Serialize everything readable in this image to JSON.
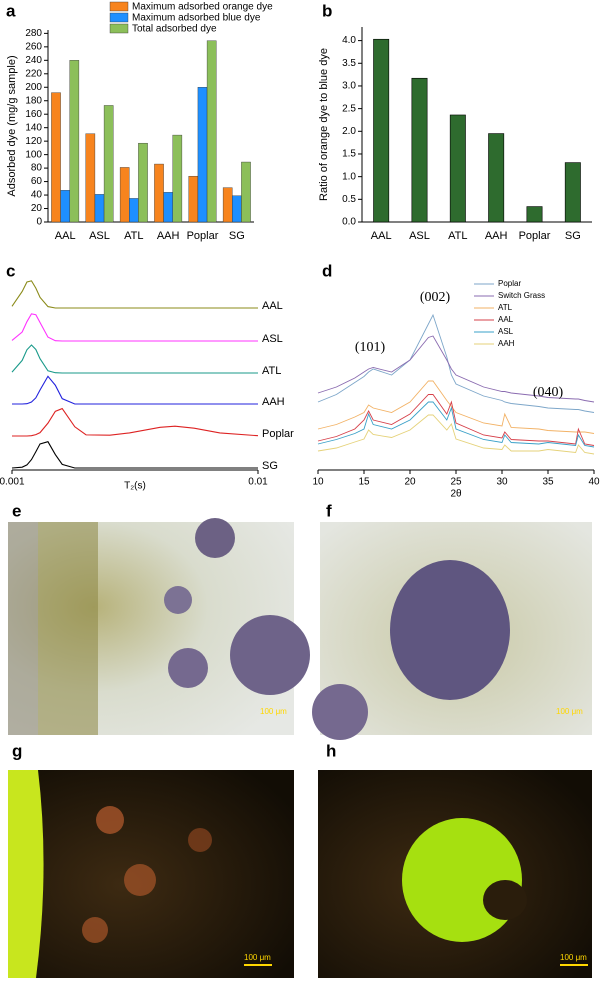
{
  "chart_data": [
    {
      "type": "bar",
      "label": "a",
      "ylabel": "Adsorbed dye (mg/g sample)",
      "categories": [
        "AAL",
        "ASL",
        "ATL",
        "AAH",
        "Poplar",
        "SG"
      ],
      "series": [
        {
          "name": "Maximum adsorbed orange dye",
          "color": "#f7841e",
          "values": [
            192,
            131,
            81,
            86,
            68,
            51
          ]
        },
        {
          "name": "Maximum adsorbed blue dye",
          "color": "#1e8fff",
          "values": [
            47,
            41,
            35,
            44,
            200,
            39
          ]
        },
        {
          "name": "Total adsorbed dye",
          "color": "#8cbf5a",
          "values": [
            240,
            173,
            117,
            129,
            269,
            89
          ]
        }
      ],
      "ylim": [
        0,
        285
      ],
      "yticks": [
        0,
        20,
        40,
        60,
        80,
        100,
        120,
        140,
        160,
        180,
        200,
        220,
        240,
        260,
        280
      ]
    },
    {
      "type": "bar",
      "label": "b",
      "ylabel": "Ratio of orange dye to blue dye",
      "categories": [
        "AAL",
        "ASL",
        "ATL",
        "AAH",
        "Poplar",
        "SG"
      ],
      "values": [
        4.03,
        3.17,
        2.36,
        1.95,
        0.34,
        1.31
      ],
      "color": "#2e6b2e",
      "ylim": [
        0,
        4.3
      ],
      "yticks": [
        {
          "value": 0,
          "label": "0.0"
        },
        0.5,
        {
          "value": 1,
          "label": "1.0"
        },
        1.5,
        {
          "value": 2,
          "label": "2.0"
        },
        2.5,
        {
          "value": 3,
          "label": "3.0"
        },
        3.5,
        {
          "value": 4,
          "label": "4.0"
        }
      ]
    },
    {
      "type": "line",
      "label": "c",
      "xlabel": "T₂(s)",
      "xlog": true,
      "x": [
        0.001,
        0.0011,
        0.00115,
        0.0012,
        0.00125,
        0.0013,
        0.0014,
        0.0015,
        0.0016,
        0.0018,
        0.002,
        0.0025,
        0.003,
        0.004,
        0.0046,
        0.0055,
        0.007,
        0.01
      ],
      "series": [
        {
          "name": "AAL",
          "color": "#8b8b1a",
          "values": [
            0.06,
            0.59,
            0.93,
            0.97,
            0.71,
            0.38,
            0.05,
            0,
            0,
            0,
            0,
            0,
            0,
            0,
            0,
            0,
            0,
            0
          ]
        },
        {
          "name": "ASL",
          "color": "#ff33ff",
          "values": [
            0.02,
            0.32,
            0.69,
            0.97,
            0.94,
            0.66,
            0.14,
            0.01,
            0,
            0,
            0,
            0,
            0,
            0,
            0,
            0,
            0,
            0
          ]
        },
        {
          "name": "ATL",
          "color": "#1a9a8a",
          "values": [
            0.03,
            0.45,
            0.83,
            1,
            0.84,
            0.51,
            0.08,
            0.01,
            0,
            0,
            0,
            0,
            0,
            0,
            0,
            0,
            0,
            0
          ]
        },
        {
          "name": "AAH",
          "color": "#2222dd",
          "values": [
            0,
            0,
            0.01,
            0.07,
            0.22,
            0.5,
            0.99,
            0.67,
            0.19,
            0,
            0,
            0,
            0,
            0,
            0,
            0,
            0,
            0
          ]
        },
        {
          "name": "Poplar",
          "color": "#dd2222",
          "values": [
            0,
            0,
            0,
            0.01,
            0.05,
            0.12,
            0.46,
            0.88,
            0.98,
            0.33,
            0.04,
            0.03,
            0.11,
            0.31,
            0.35,
            0.28,
            0.11,
            0.01
          ]
        },
        {
          "name": "SG",
          "color": "#000000",
          "values": [
            0,
            0.03,
            0.11,
            0.3,
            0.58,
            0.86,
            0.94,
            0.48,
            0.13,
            0,
            0,
            0,
            0,
            0,
            0,
            0,
            0,
            0
          ]
        }
      ],
      "xlim": [
        0.001,
        0.01
      ],
      "xticks": [
        0.001,
        0.01
      ]
    },
    {
      "type": "line",
      "label": "d",
      "xlabel": "2θ",
      "x": [
        10,
        12,
        14,
        15,
        15.5,
        16,
        18,
        20,
        22,
        22.5,
        24,
        24.5,
        25,
        28,
        30,
        30.3,
        31,
        34,
        35,
        38,
        38.3,
        39,
        40
      ],
      "series": [
        {
          "name": "Poplar",
          "color": "#7da6c9",
          "values": [
            20,
            25,
            33,
            37,
            40,
            42,
            38,
            48,
            72,
            78,
            50,
            38,
            32,
            24,
            21,
            20,
            19,
            17,
            16,
            15,
            15,
            14,
            13
          ]
        },
        {
          "name": "Switch Grass",
          "color": "#8a6bb0",
          "values": [
            18,
            22,
            28,
            32,
            34,
            35,
            32,
            40,
            55,
            56,
            40,
            34,
            30,
            22,
            19,
            19,
            18,
            16,
            15,
            14,
            14,
            13,
            12
          ]
        },
        {
          "name": "ATL",
          "color": "#f2b266",
          "values": [
            14,
            17,
            22,
            25,
            30,
            28,
            25,
            32,
            46,
            46,
            33,
            29,
            25,
            18,
            16,
            24,
            15,
            14,
            13,
            12,
            12,
            12,
            11
          ]
        },
        {
          "name": "AAL",
          "color": "#d6404a",
          "values": [
            14,
            17,
            22,
            28,
            34,
            28,
            25,
            32,
            45,
            45,
            32,
            40,
            26,
            18,
            16,
            20,
            15,
            14,
            14,
            12,
            22,
            12,
            11
          ]
        },
        {
          "name": "ASL",
          "color": "#3aa0c8",
          "values": [
            12,
            15,
            19,
            22,
            32,
            25,
            22,
            28,
            40,
            40,
            28,
            36,
            22,
            15,
            13,
            18,
            13,
            12,
            13,
            11,
            18,
            11,
            10
          ]
        },
        {
          "name": "AAH",
          "color": "#e5d27a",
          "values": [
            10,
            12,
            16,
            18,
            24,
            21,
            19,
            24,
            34,
            34,
            24,
            28,
            18,
            12,
            11,
            14,
            10,
            10,
            11,
            9,
            14,
            9,
            8
          ]
        }
      ],
      "annotations": [
        "(101)",
        "(002)",
        "(040)"
      ],
      "xlim": [
        10,
        40
      ],
      "xticks": [
        10,
        15,
        20,
        25,
        30,
        35,
        40
      ]
    }
  ],
  "images": [
    {
      "label": "e",
      "scale_bar": "100 μm"
    },
    {
      "label": "f",
      "scale_bar": "100 μm"
    },
    {
      "label": "g",
      "scale_bar": "100 μm"
    },
    {
      "label": "h",
      "scale_bar": "100 μm"
    }
  ]
}
